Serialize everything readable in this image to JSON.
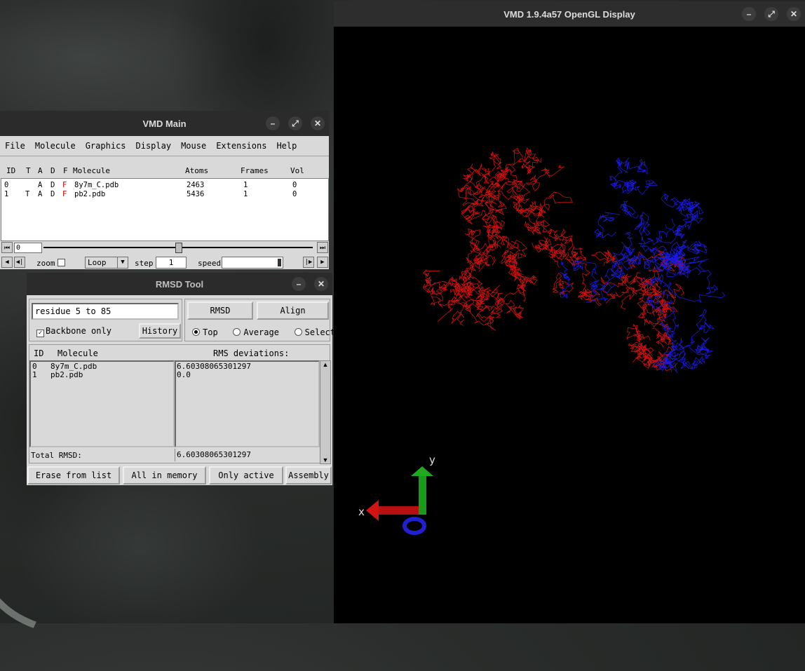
{
  "gl_window": {
    "title": "VMD 1.9.4a57 OpenGL Display",
    "axes": {
      "x": "x",
      "y": "y"
    },
    "colors": {
      "mol0": "#d01010",
      "mol1": "#1a1adc",
      "x_axis": "#c01010",
      "y_axis": "#18a018",
      "z_axis": "#2020d0"
    }
  },
  "main_window": {
    "title": "VMD Main",
    "menu": [
      "File",
      "Molecule",
      "Graphics",
      "Display",
      "Mouse",
      "Extensions",
      "Help"
    ],
    "columns": {
      "id": "ID",
      "t": "T",
      "a": "A",
      "d": "D",
      "f": "F",
      "molecule": "Molecule",
      "atoms": "Atoms",
      "frames": "Frames",
      "vol": "Vol"
    },
    "molecules": [
      {
        "id": "0",
        "t": "",
        "a": "A",
        "d": "D",
        "f": "F",
        "name": "8y7m_C.pdb",
        "atoms": "2463",
        "frames": "1",
        "vol": "0"
      },
      {
        "id": "1",
        "t": "T",
        "a": "A",
        "d": "D",
        "f": "F",
        "name": "pb2.pdb",
        "atoms": "5436",
        "frames": "1",
        "vol": "0"
      }
    ],
    "frame_value": "0",
    "zoom_label": "zoom",
    "loop_value": "Loop",
    "step_label": "step",
    "step_value": "1",
    "speed_label": "speed"
  },
  "rmsd_window": {
    "title": "RMSD Tool",
    "selection": "residue 5 to 85",
    "backbone_only": "Backbone only",
    "history": "History",
    "rmsd_btn": "RMSD",
    "align_btn": "Align",
    "radio": {
      "top": "Top",
      "average": "Average",
      "selected": "Selected"
    },
    "list_head": {
      "id": "ID",
      "molecule": "Molecule",
      "rms": "RMS deviations:"
    },
    "rows": [
      {
        "id": "0",
        "name": "8y7m_C.pdb",
        "rms": "6.60308065301297"
      },
      {
        "id": "1",
        "name": "pb2.pdb",
        "rms": "0.0"
      }
    ],
    "total_label": "Total RMSD:",
    "total_value": "6.60308065301297",
    "buttons": {
      "erase": "Erase from list",
      "all": "All in memory",
      "active": "Only active",
      "assembly": "Assembly"
    }
  }
}
